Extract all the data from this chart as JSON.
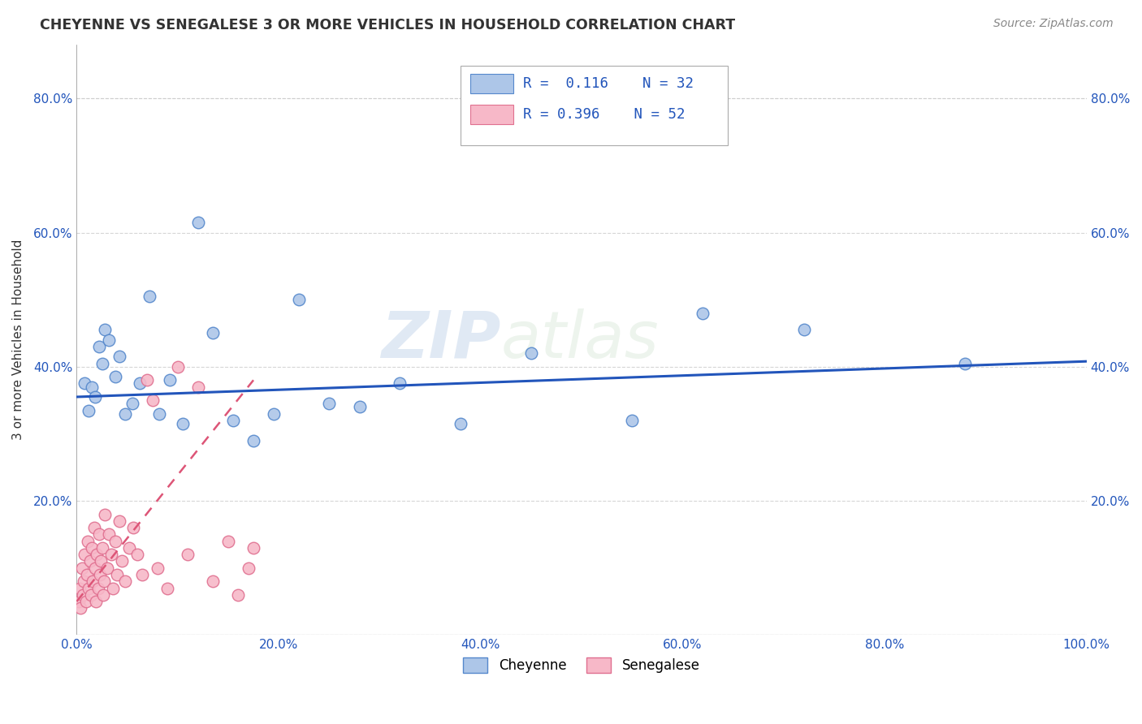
{
  "title": "CHEYENNE VS SENEGALESE 3 OR MORE VEHICLES IN HOUSEHOLD CORRELATION CHART",
  "source": "Source: ZipAtlas.com",
  "ylabel": "3 or more Vehicles in Household",
  "xlim": [
    0,
    1.0
  ],
  "ylim": [
    0,
    0.88
  ],
  "xticks": [
    0.0,
    0.2,
    0.4,
    0.6,
    0.8,
    1.0
  ],
  "xtick_labels": [
    "0.0%",
    "20.0%",
    "40.0%",
    "60.0%",
    "80.0%",
    "100.0%"
  ],
  "yticks": [
    0.0,
    0.2,
    0.4,
    0.6,
    0.8
  ],
  "ytick_labels": [
    "",
    "20.0%",
    "40.0%",
    "60.0%",
    "80.0%"
  ],
  "cheyenne_color": "#adc6e8",
  "senegalese_color": "#f7b8c8",
  "cheyenne_edge": "#5588cc",
  "senegalese_edge": "#e07090",
  "trend_cheyenne_color": "#2255bb",
  "trend_senegalese_color": "#dd5577",
  "watermark_zip": "ZIP",
  "watermark_atlas": "atlas",
  "cheyenne_x": [
    0.008,
    0.012,
    0.015,
    0.018,
    0.022,
    0.025,
    0.028,
    0.032,
    0.038,
    0.042,
    0.048,
    0.055,
    0.062,
    0.072,
    0.082,
    0.092,
    0.105,
    0.12,
    0.135,
    0.155,
    0.175,
    0.195,
    0.22,
    0.25,
    0.28,
    0.32,
    0.38,
    0.45,
    0.55,
    0.62,
    0.72,
    0.88
  ],
  "cheyenne_y": [
    0.375,
    0.335,
    0.37,
    0.355,
    0.43,
    0.405,
    0.455,
    0.44,
    0.385,
    0.415,
    0.33,
    0.345,
    0.375,
    0.505,
    0.33,
    0.38,
    0.315,
    0.615,
    0.45,
    0.32,
    0.29,
    0.33,
    0.5,
    0.345,
    0.34,
    0.375,
    0.315,
    0.42,
    0.32,
    0.48,
    0.455,
    0.405
  ],
  "senegalese_x": [
    0.002,
    0.003,
    0.004,
    0.005,
    0.006,
    0.007,
    0.008,
    0.009,
    0.01,
    0.011,
    0.012,
    0.013,
    0.014,
    0.015,
    0.016,
    0.017,
    0.018,
    0.019,
    0.02,
    0.021,
    0.022,
    0.023,
    0.024,
    0.025,
    0.026,
    0.027,
    0.028,
    0.03,
    0.032,
    0.034,
    0.036,
    0.038,
    0.04,
    0.042,
    0.045,
    0.048,
    0.052,
    0.056,
    0.06,
    0.065,
    0.07,
    0.075,
    0.08,
    0.09,
    0.1,
    0.11,
    0.12,
    0.135,
    0.15,
    0.16,
    0.17,
    0.175
  ],
  "senegalese_y": [
    0.05,
    0.07,
    0.04,
    0.1,
    0.06,
    0.08,
    0.12,
    0.05,
    0.09,
    0.14,
    0.07,
    0.11,
    0.06,
    0.13,
    0.08,
    0.16,
    0.1,
    0.05,
    0.12,
    0.07,
    0.15,
    0.09,
    0.11,
    0.13,
    0.06,
    0.08,
    0.18,
    0.1,
    0.15,
    0.12,
    0.07,
    0.14,
    0.09,
    0.17,
    0.11,
    0.08,
    0.13,
    0.16,
    0.12,
    0.09,
    0.38,
    0.35,
    0.1,
    0.07,
    0.4,
    0.12,
    0.37,
    0.08,
    0.14,
    0.06,
    0.1,
    0.13
  ],
  "cheyenne_trend_x0": 0.0,
  "cheyenne_trend_x1": 1.0,
  "cheyenne_trend_y0": 0.355,
  "cheyenne_trend_y1": 0.408,
  "senegalese_trend_x0": 0.0,
  "senegalese_trend_x1": 0.175,
  "senegalese_trend_y0": 0.05,
  "senegalese_trend_y1": 0.38
}
